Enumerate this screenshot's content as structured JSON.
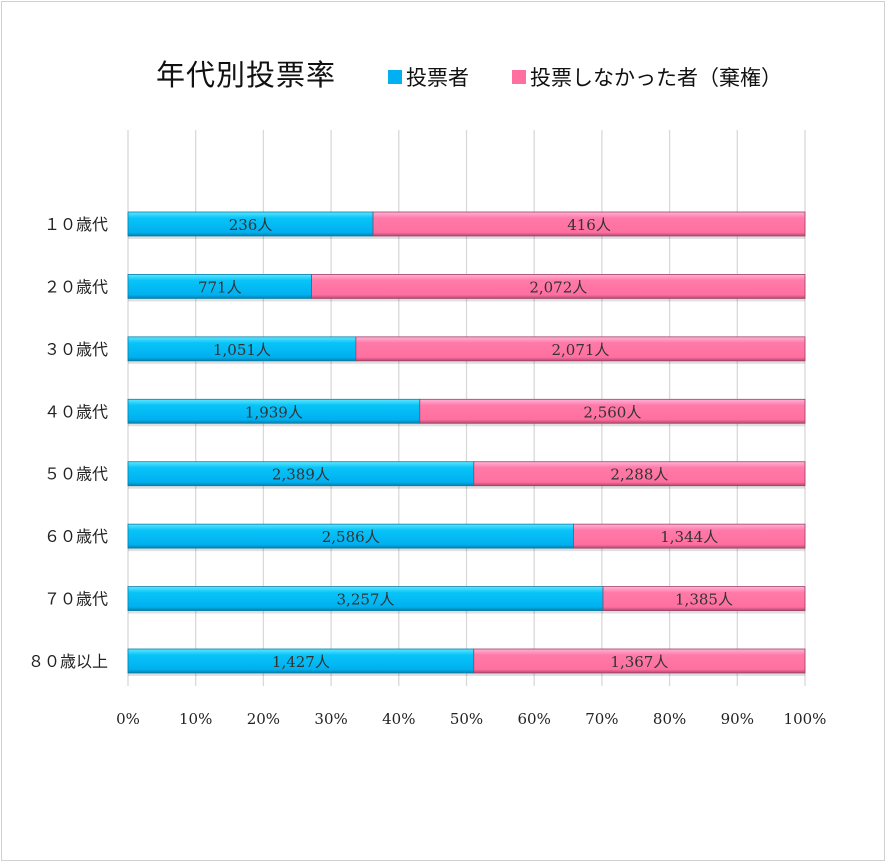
{
  "chart_data": {
    "type": "bar",
    "orientation": "horizontal",
    "stacking": "percent",
    "title": "年代別投票率",
    "categories": [
      "１０歳代",
      "２０歳代",
      "３０歳代",
      "４０歳代",
      "５０歳代",
      "６０歳代",
      "７０歳代",
      "８０歳以上"
    ],
    "series": [
      {
        "name": "投票者",
        "color": "#00b0f0",
        "values": [
          236,
          771,
          1051,
          1939,
          2389,
          2586,
          3257,
          1427
        ],
        "labels": [
          "236人",
          "771人",
          "1,051人",
          "1,939人",
          "2,389人",
          "2,586人",
          "3,257人",
          "1,427人"
        ]
      },
      {
        "name": "投票しなかった者（棄権）",
        "color": "#ff6f9f",
        "values": [
          416,
          2072,
          2071,
          2560,
          2288,
          1344,
          1385,
          1367
        ],
        "labels": [
          "416人",
          "2,072人",
          "2,071人",
          "2,560人",
          "2,288人",
          "1,344人",
          "1,385人",
          "1,367人"
        ]
      }
    ],
    "xlim": [
      0,
      100
    ],
    "xticks": [
      "0%",
      "10%",
      "20%",
      "30%",
      "40%",
      "50%",
      "60%",
      "70%",
      "80%",
      "90%",
      "100%"
    ],
    "grid": true,
    "legend_position": "top"
  }
}
